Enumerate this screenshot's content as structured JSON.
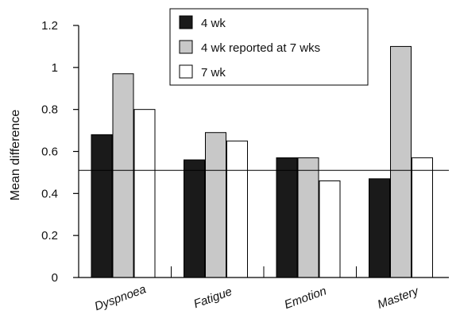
{
  "chart_data": {
    "type": "bar",
    "title": "",
    "xlabel": "",
    "ylabel": "Mean difference",
    "ylim": [
      0,
      1.2
    ],
    "yticks": [
      "0",
      "0.2",
      "0.4",
      "0.6",
      "0.8",
      "1",
      "1.2"
    ],
    "grid": false,
    "legend_position": "top-center",
    "categories": [
      "Dyspnoea",
      "Fatigue",
      "Emotion",
      "Mastery"
    ],
    "series": [
      {
        "name": "4 wk",
        "values": [
          0.68,
          0.56,
          0.57,
          0.47
        ],
        "color": "#1a1a1a"
      },
      {
        "name": "4 wk reported at 7 wks",
        "values": [
          0.97,
          0.69,
          0.57,
          1.1
        ],
        "color": "#c8c8c8"
      },
      {
        "name": "7 wk",
        "values": [
          0.8,
          0.65,
          0.46,
          0.57
        ],
        "color": "#ffffff"
      }
    ],
    "reference_line": {
      "y": 0.51
    }
  }
}
